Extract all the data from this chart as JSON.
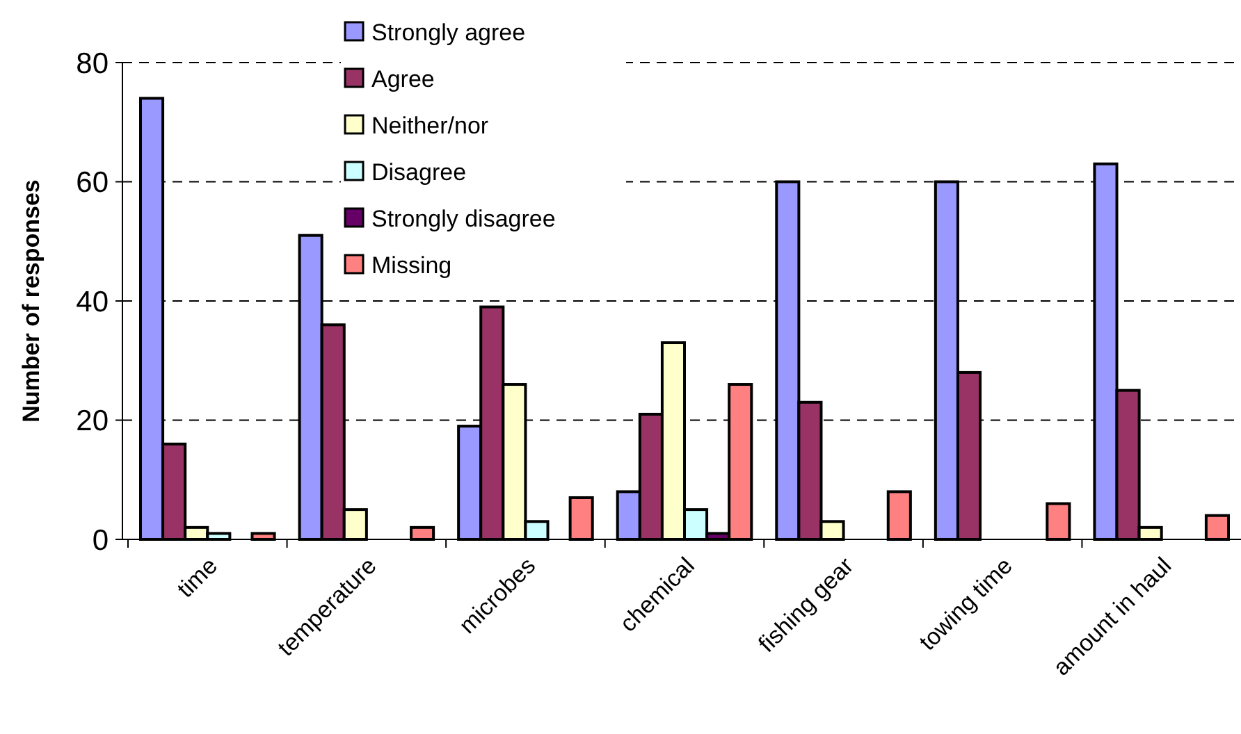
{
  "chart_data": {
    "type": "bar",
    "ylabel": "Number of responses",
    "categories": [
      "time",
      "temperature",
      "microbes",
      "chemical",
      "fishing gear",
      "towing time",
      "amount in haul"
    ],
    "series": [
      {
        "name": "Strongly agree",
        "color": "#9999ff",
        "values": [
          74,
          51,
          19,
          8,
          60,
          60,
          63
        ]
      },
      {
        "name": "Agree",
        "color": "#993366",
        "values": [
          16,
          36,
          39,
          21,
          23,
          28,
          25
        ]
      },
      {
        "name": "Neither/nor",
        "color": "#ffffcc",
        "values": [
          2,
          5,
          26,
          33,
          3,
          0,
          2
        ]
      },
      {
        "name": "Disagree",
        "color": "#ccffff",
        "values": [
          1,
          0,
          3,
          5,
          0,
          0,
          0
        ]
      },
      {
        "name": "Strongly disagree",
        "color": "#660066",
        "values": [
          0,
          0,
          0,
          1,
          0,
          0,
          0
        ]
      },
      {
        "name": "Missing",
        "color": "#ff8080",
        "values": [
          1,
          2,
          7,
          26,
          8,
          6,
          4
        ]
      }
    ],
    "ylim": [
      0,
      80
    ],
    "yticks": [
      0,
      20,
      40,
      60,
      80
    ],
    "grid": "y",
    "legend": "top"
  }
}
